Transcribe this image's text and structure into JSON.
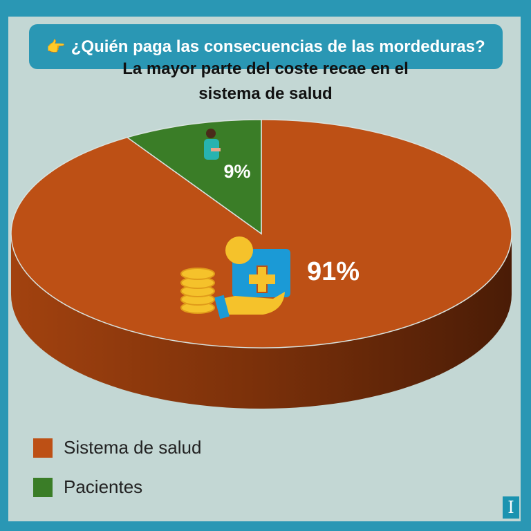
{
  "header": {
    "icon": "pointing-hand-icon",
    "question": "¿Quién paga las consecuencias de las mordeduras?"
  },
  "chart_data": {
    "type": "pie",
    "style": "3d",
    "title": "La mayor parte del coste recae en el sistema de salud",
    "title_lines": [
      "La mayor parte del coste recae en el",
      "sistema de salud"
    ],
    "categories": [
      "Sistema de salud",
      "Pacientes"
    ],
    "values": [
      91,
      9
    ],
    "data_labels": [
      "91%",
      "9%"
    ],
    "colors": [
      "#BD5015",
      "#3A7D27"
    ],
    "legend_position": "bottom-left"
  },
  "icons": {
    "patients": "injured-person-icon",
    "health_system": "medical-kit-coins-hand-icon"
  },
  "colors": {
    "background": "#C3D7D4",
    "frame": "#2A97B4",
    "label": "#FFFFFF"
  }
}
